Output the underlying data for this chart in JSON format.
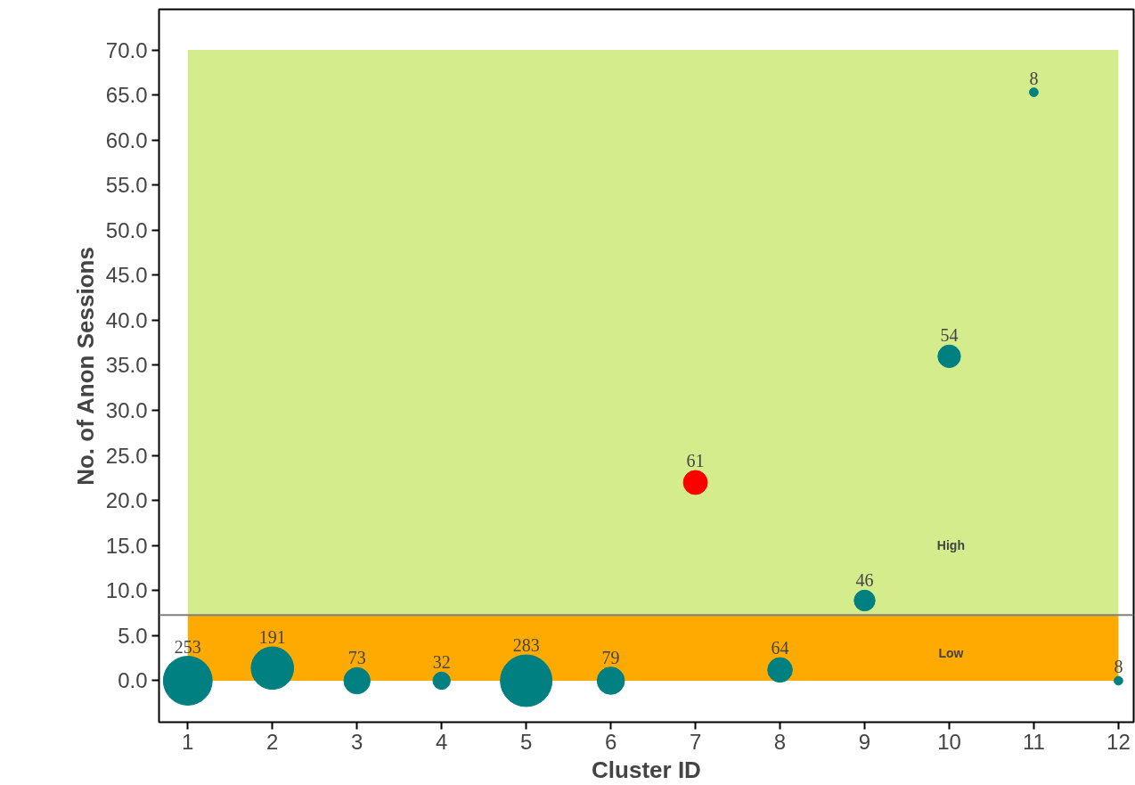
{
  "chart_data": {
    "type": "bubble",
    "xlabel": "Cluster ID",
    "ylabel": "No. of Anon Sessions",
    "x": [
      1,
      2,
      3,
      4,
      5,
      6,
      7,
      8,
      9,
      10,
      11,
      12
    ],
    "values": [
      0,
      1.4,
      0,
      0,
      0,
      0,
      22,
      1.2,
      8.9,
      36,
      65.3,
      0
    ],
    "sizes": [
      253,
      191,
      73,
      32,
      283,
      79,
      61,
      64,
      46,
      54,
      8,
      8
    ],
    "value_labels": [
      "253",
      "191",
      "73",
      "32",
      "283",
      "79",
      "61",
      "64",
      "46",
      "54",
      "8",
      "8"
    ],
    "colors": [
      "#008080",
      "#008080",
      "#008080",
      "#008080",
      "#008080",
      "#008080",
      "#ff0000",
      "#008080",
      "#008080",
      "#008080",
      "#008080",
      "#008080"
    ],
    "xlim": [
      0.66,
      12.18
    ],
    "ylim": [
      -4.6,
      74.5
    ],
    "xticks": [
      1,
      2,
      3,
      4,
      5,
      6,
      7,
      8,
      9,
      10,
      11,
      12
    ],
    "yticks": [
      {
        "value": 0,
        "label": "0.0"
      },
      {
        "value": 5,
        "label": "5.0"
      },
      {
        "value": 10,
        "label": "10.0"
      },
      {
        "value": 15,
        "label": "15.0"
      },
      {
        "value": 20,
        "label": "20.0"
      },
      {
        "value": 25,
        "label": "25.0"
      },
      {
        "value": 30,
        "label": "30.0"
      },
      {
        "value": 35,
        "label": "35.0"
      },
      {
        "value": 40,
        "label": "40.0"
      },
      {
        "value": 45,
        "label": "45.0"
      },
      {
        "value": 50,
        "label": "50.0"
      },
      {
        "value": 55,
        "label": "55.0"
      },
      {
        "value": 60,
        "label": "60.0"
      },
      {
        "value": 65,
        "label": "65.0"
      },
      {
        "value": 70,
        "label": "70.0"
      }
    ],
    "bands": [
      {
        "axis": "y",
        "from": 7.3,
        "to": 70,
        "label": "High",
        "color": "#d4ec8c"
      },
      {
        "axis": "y",
        "from": 0,
        "to": 7.3,
        "label": "Low",
        "color": "#ffaa00"
      }
    ],
    "ref_lines": [
      {
        "axis": "y",
        "value": 7.3,
        "color": "#808080"
      }
    ],
    "grid": false
  }
}
